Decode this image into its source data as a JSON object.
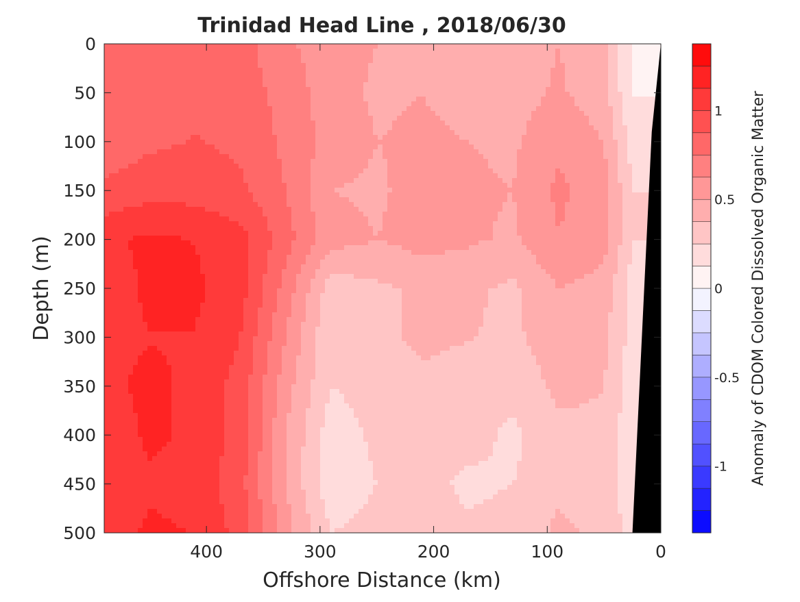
{
  "chart_data": {
    "type": "heatmap",
    "title": "Trinidad Head Line , 2018/06/30",
    "xlabel": "Offshore Distance (km)",
    "ylabel": "Depth (m)",
    "xlim": [
      490,
      0
    ],
    "ylim": [
      0,
      500
    ],
    "x_reversed": true,
    "y_reversed": true,
    "xticks": [
      400,
      300,
      200,
      100,
      0
    ],
    "yticks": [
      0,
      50,
      100,
      150,
      200,
      250,
      300,
      350,
      400,
      450,
      500
    ],
    "colorbar": {
      "label": "Anomaly of CDOM Colored Dissolved Organic Matter",
      "clim": [
        -1.375,
        1.375
      ],
      "level_step": 0.125,
      "ticks": [
        -1,
        -0.5,
        0,
        0.5,
        1
      ],
      "colors": {
        "negative": "#0000ff",
        "neutral": "#ffffff",
        "positive": "#ff0000"
      }
    },
    "grid": false,
    "x": [
      490,
      450,
      410,
      370,
      330,
      290,
      250,
      210,
      170,
      130,
      90,
      50,
      25
    ],
    "y": [
      0,
      50,
      100,
      150,
      200,
      250,
      300,
      350,
      400,
      450,
      500
    ],
    "z": [
      [
        0.8,
        0.82,
        0.85,
        0.8,
        0.65,
        0.55,
        0.5,
        0.48,
        0.45,
        0.42,
        0.5,
        0.4,
        0.1
      ],
      [
        0.78,
        0.8,
        0.86,
        0.82,
        0.7,
        0.55,
        0.48,
        0.5,
        0.46,
        0.44,
        0.52,
        0.42,
        0.12
      ],
      [
        0.8,
        0.85,
        0.88,
        0.85,
        0.72,
        0.58,
        0.5,
        0.52,
        0.5,
        0.48,
        0.6,
        0.5,
        0.2
      ],
      [
        0.9,
        0.95,
        0.95,
        0.9,
        0.75,
        0.5,
        0.48,
        0.55,
        0.52,
        0.5,
        0.65,
        0.55,
        0.25
      ],
      [
        1.1,
        1.15,
        1.12,
        1.05,
        0.8,
        0.55,
        0.5,
        0.55,
        0.52,
        0.48,
        0.62,
        0.55,
        0.25
      ],
      [
        1.05,
        1.15,
        1.15,
        1.05,
        0.7,
        0.3,
        0.35,
        0.4,
        0.4,
        0.35,
        0.5,
        0.45,
        0.2
      ],
      [
        1.1,
        1.12,
        1.12,
        1.0,
        0.62,
        0.25,
        0.35,
        0.4,
        0.38,
        0.35,
        0.45,
        0.4,
        0.2
      ],
      [
        1.1,
        1.15,
        1.1,
        0.95,
        0.55,
        0.25,
        0.3,
        0.35,
        0.32,
        0.3,
        0.4,
        0.38,
        0.18
      ],
      [
        1.05,
        1.15,
        1.1,
        0.95,
        0.5,
        0.18,
        0.28,
        0.32,
        0.3,
        0.22,
        0.35,
        0.35,
        0.15
      ],
      [
        1.0,
        1.1,
        1.08,
        0.92,
        0.5,
        0.15,
        0.25,
        0.3,
        0.22,
        0.25,
        0.35,
        0.32,
        0.15
      ],
      [
        1.05,
        1.15,
        1.12,
        0.95,
        0.55,
        0.25,
        0.3,
        0.3,
        0.28,
        0.3,
        0.4,
        0.35,
        0.2
      ]
    ],
    "bathymetry_km_at_depth": [
      [
        0,
        0
      ],
      [
        90,
        8
      ],
      [
        500,
        25
      ]
    ]
  }
}
